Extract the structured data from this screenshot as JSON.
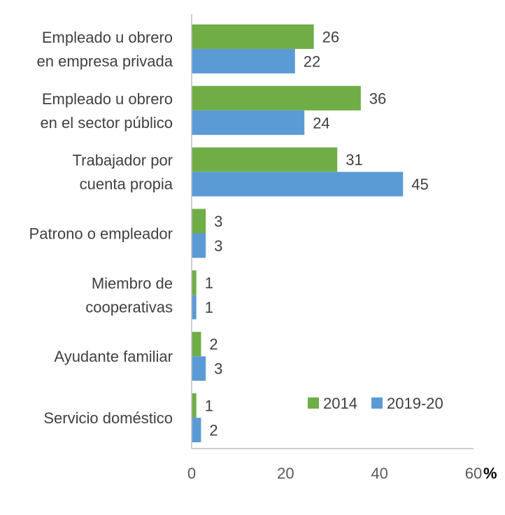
{
  "chart_data": {
    "type": "bar",
    "orientation": "horizontal",
    "categories": [
      [
        "Empleado u obrero",
        "en empresa privada"
      ],
      [
        "Empleado u obrero",
        "en el sector público"
      ],
      [
        "Trabajador por",
        "cuenta propia"
      ],
      [
        "Patrono o empleador"
      ],
      [
        "Miembro de",
        "cooperativas"
      ],
      [
        "Ayudante familiar"
      ],
      [
        "Servicio doméstico"
      ]
    ],
    "series": [
      {
        "name": "2014",
        "color": "#70AD47",
        "values": [
          26,
          36,
          31,
          3,
          1,
          2,
          1
        ]
      },
      {
        "name": "2019-20",
        "color": "#5B9BD5",
        "values": [
          22,
          24,
          45,
          3,
          1,
          3,
          2
        ]
      }
    ],
    "xlim": [
      0,
      60
    ],
    "xticks": [
      "0",
      "20",
      "40",
      "60"
    ],
    "unit": "%",
    "legend_position": "bottom-right-inside",
    "grid": false
  }
}
